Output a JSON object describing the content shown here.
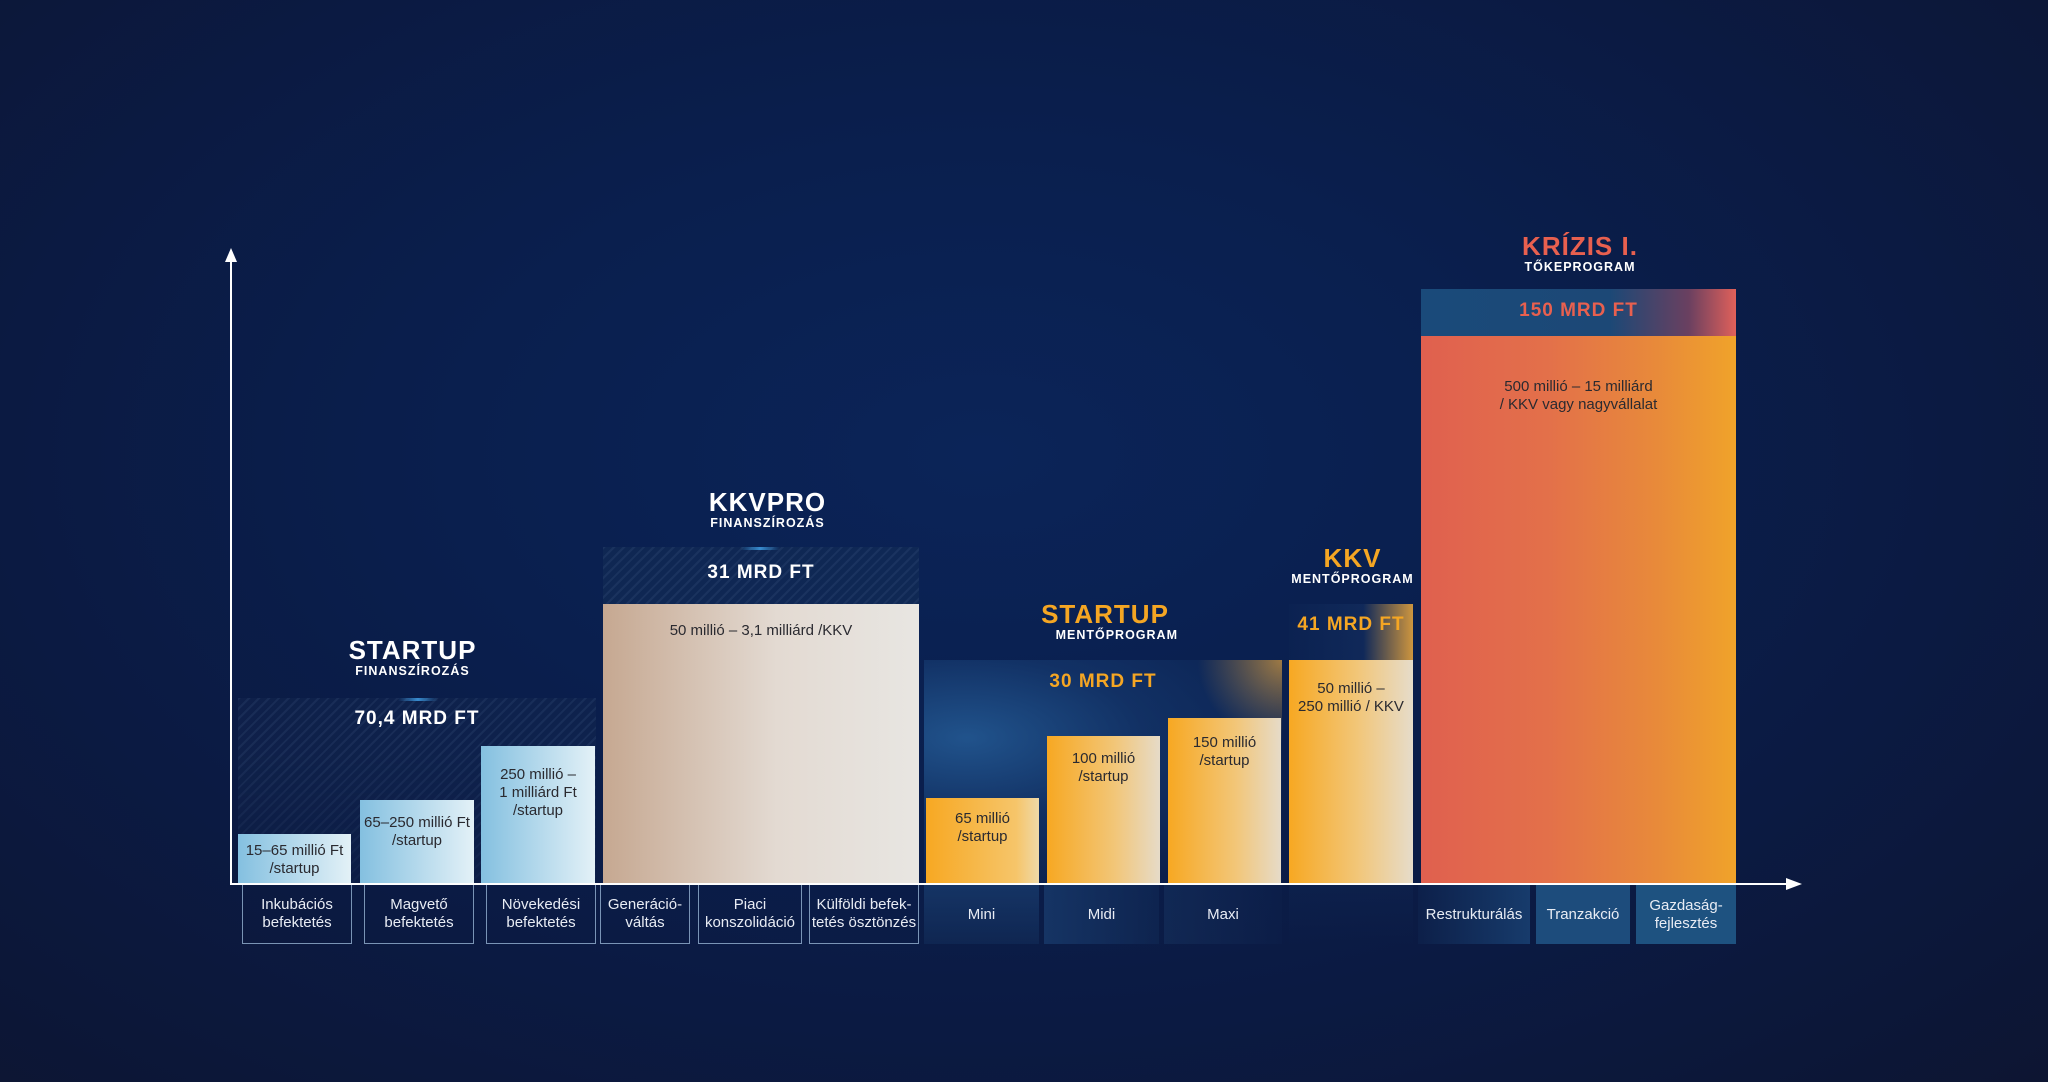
{
  "chart_data": {
    "type": "bar",
    "groups": [
      {
        "title": "STARTUP",
        "subtitle": "FINANSZÍROZÁS",
        "total_label": "70,4 MRD FT",
        "bars": [
          {
            "category": "Inkubációs\nbefektetés",
            "label": "15–65 millió Ft\n/startup"
          },
          {
            "category": "Magvető\nbefektetés",
            "label": "65–250 millió Ft\n/startup"
          },
          {
            "category": "Növekedési\nbefektetés",
            "label": "250 millió –\n1 milliárd Ft\n/startup"
          }
        ]
      },
      {
        "title": "KKVPRO",
        "subtitle": "FINANSZÍROZÁS",
        "total_label": "31 MRD FT",
        "bar_label": "50 millió – 3,1 milliárd /KKV",
        "categories": [
          "Generáció-\nváltás",
          "Piaci\nkonszolidáció",
          "Külföldi befek-\ntetés ösztönzés"
        ]
      },
      {
        "title": "STARTUP",
        "subtitle": "MENTŐPROGRAM",
        "total_label": "30 MRD FT",
        "bars": [
          {
            "category": "Mini",
            "label": "65 millió\n/startup"
          },
          {
            "category": "Midi",
            "label": "100 millió\n/startup"
          },
          {
            "category": "Maxi",
            "label": "150 millió\n/startup"
          }
        ]
      },
      {
        "title": "KKV",
        "subtitle": "MENTŐPROGRAM",
        "total_label": "41 MRD FT",
        "bar_label": "50 millió –\n250 millió / KKV"
      },
      {
        "title": "KRÍZIS I.",
        "subtitle": "TŐKEPROGRAM",
        "total_label": "150 MRD FT",
        "bar_label": "500 millió – 15 milliárd\n/ KKV vagy nagyvállalat",
        "categories": [
          "Restrukturálás",
          "Tranzakció",
          "Gazdaság-\nfejlesztés"
        ]
      }
    ],
    "colors": {
      "startup_blue": "#7fbfe0",
      "kkvpro_beige": "#c8ab95",
      "orange": "#f7a822",
      "krizis_red": "#e0604f",
      "title_orange": "#f5a623",
      "title_red": "#e8604f"
    },
    "grid": false
  }
}
